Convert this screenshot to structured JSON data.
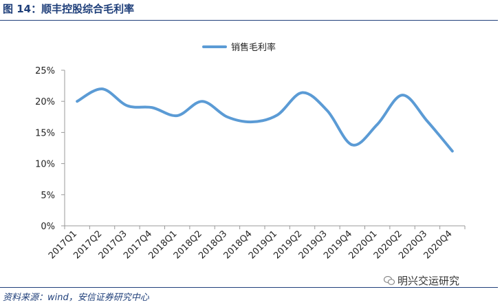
{
  "figure": {
    "title": "图 14：顺丰控股综合毛利率",
    "source": "资料来源：wind，安信证券研究中心",
    "watermark": "明兴交运研究",
    "watermark_icon": "wechat-icon"
  },
  "chart_data": {
    "type": "line",
    "title": "",
    "xlabel": "",
    "ylabel": "",
    "categories": [
      "2017Q1",
      "2017Q2",
      "2017Q3",
      "2017Q4",
      "2018Q1",
      "2018Q2",
      "2018Q3",
      "2018Q4",
      "2019Q1",
      "2019Q2",
      "2019Q3",
      "2019Q4",
      "2020Q1",
      "2020Q2",
      "2020Q3",
      "2020Q4"
    ],
    "series": [
      {
        "name": "销售毛利率",
        "values": [
          20.0,
          22.0,
          19.3,
          19.0,
          17.7,
          20.0,
          17.5,
          16.7,
          17.8,
          21.4,
          18.5,
          13.0,
          16.3,
          21.0,
          16.8,
          12.0
        ],
        "color": "#5b9bd5"
      }
    ],
    "ylim": [
      0,
      25
    ],
    "yticks": [
      0,
      5,
      10,
      15,
      20,
      25
    ],
    "ytick_labels": [
      "0%",
      "5%",
      "10%",
      "15%",
      "20%",
      "25%"
    ],
    "legend_position": "top-center",
    "grid": false
  }
}
